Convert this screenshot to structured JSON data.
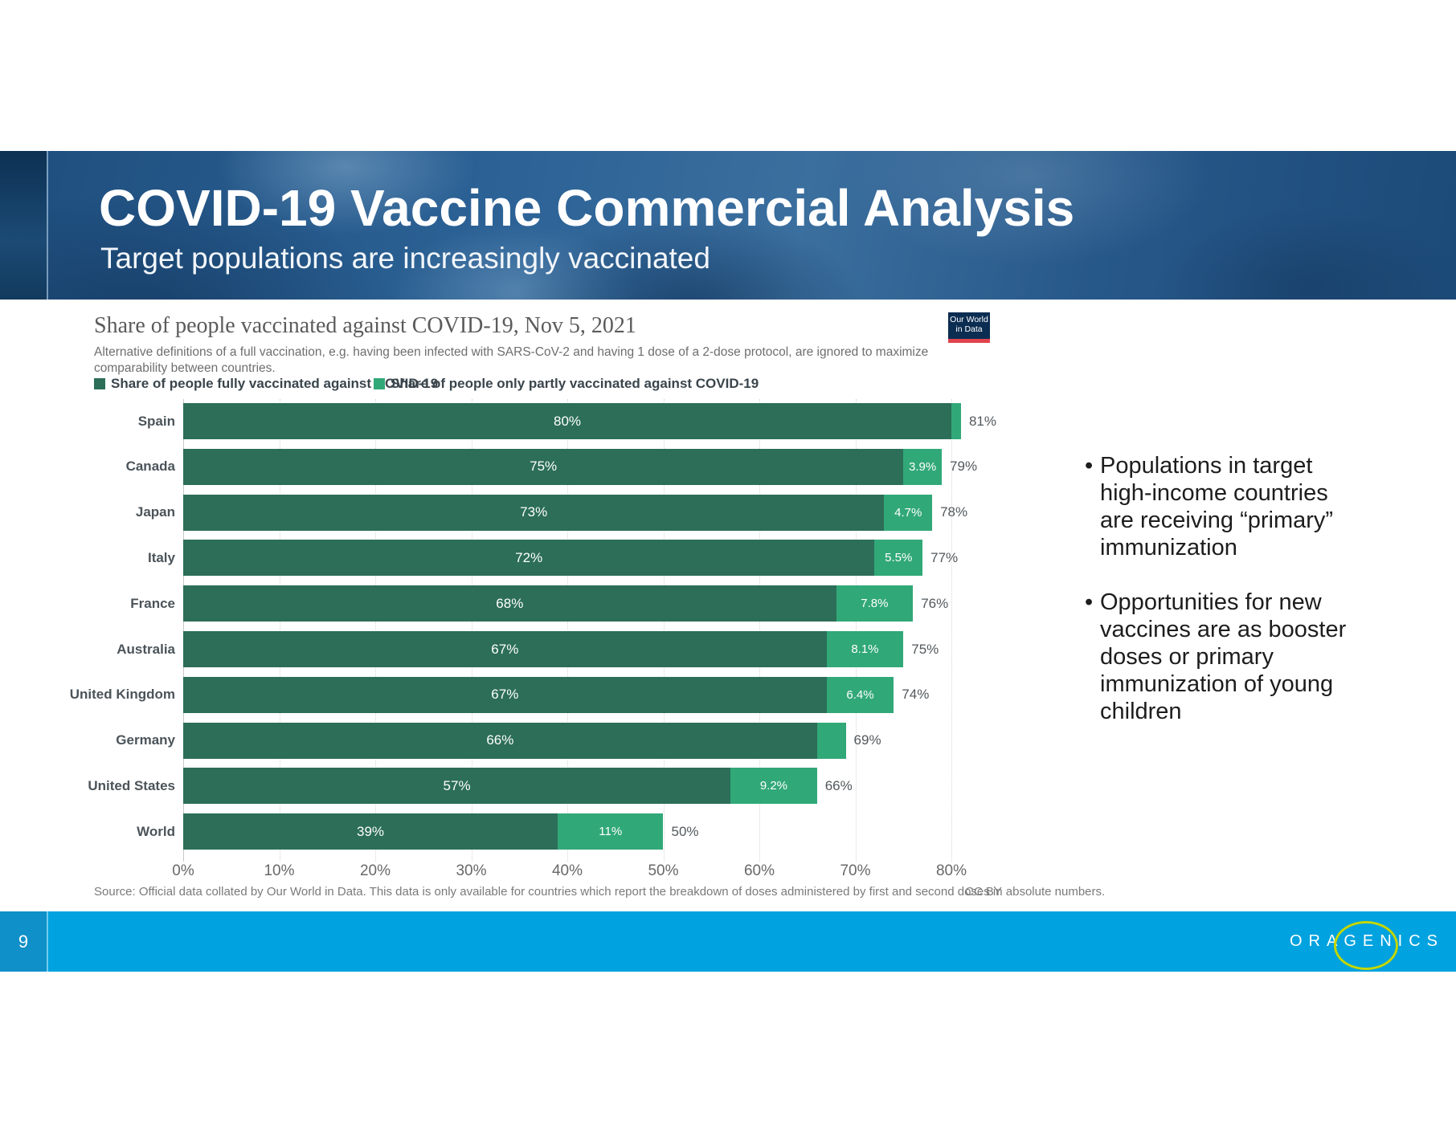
{
  "slide": {
    "title": "COVID-19 Vaccine Commercial Analysis",
    "subtitle": "Target populations are increasingly vaccinated",
    "page_number": "9",
    "logo_text": "ORAGENICS"
  },
  "colors": {
    "full_vaccinated_green": "#2c6e58",
    "partly_vaccinated_teal": "#31a878",
    "footer_blue": "#00a2df",
    "footer_dark_blue": "#1090c8",
    "owid_navy": "#0c2d52",
    "owid_red": "#e0434d",
    "logo_ellipse_yellow_green": "#c3d600"
  },
  "chart": {
    "title": "Share of people vaccinated against COVID-19, Nov 5, 2021",
    "subtitle": "Alternative definitions of a full vaccination, e.g. having been infected with SARS-CoV-2 and having 1 dose of a 2-dose protocol, are ignored to maximize comparability between countries.",
    "owid_logo_line1": "Our World",
    "owid_logo_line2": "in Data",
    "source": "Source: Official data collated by Our World in Data. This data is only available for countries which report the breakdown of doses administered by first and second doses in absolute numbers.",
    "license": "CC BY"
  },
  "chart_data": {
    "type": "bar",
    "orientation": "horizontal",
    "stacked": true,
    "title": "Share of people vaccinated against COVID-19, Nov 5, 2021",
    "categories": [
      "Spain",
      "Canada",
      "Japan",
      "Italy",
      "France",
      "Australia",
      "United Kingdom",
      "Germany",
      "United States",
      "World"
    ],
    "series": [
      {
        "name": "Share of people fully vaccinated against COVID-19",
        "color": "#2c6e58",
        "values": [
          80,
          75,
          73,
          72,
          68,
          67,
          67,
          66,
          57,
          39
        ],
        "labels": [
          "80%",
          "75%",
          "73%",
          "72%",
          "68%",
          "67%",
          "67%",
          "66%",
          "57%",
          "39%"
        ]
      },
      {
        "name": "Share of people only partly vaccinated against COVID-19",
        "color": "#31a878",
        "values": [
          1,
          3.9,
          4.7,
          5.5,
          7.8,
          8.1,
          6.4,
          3,
          9.2,
          11
        ],
        "labels": [
          "",
          "3.9%",
          "4.7%",
          "5.5%",
          "7.8%",
          "8.1%",
          "6.4%",
          "",
          "9.2%",
          "11%"
        ]
      }
    ],
    "totals_value": [
      81,
      79,
      78,
      77,
      76,
      75,
      74,
      69,
      66,
      50
    ],
    "totals_label": [
      "81%",
      "79%",
      "78%",
      "77%",
      "76%",
      "75%",
      "74%",
      "69%",
      "66%",
      "50%"
    ],
    "x_ticks": [
      "0%",
      "10%",
      "20%",
      "30%",
      "40%",
      "50%",
      "60%",
      "70%",
      "80%"
    ],
    "xlim": [
      0,
      80
    ],
    "grid": "dotted-vertical",
    "legend_position": "top-left"
  },
  "bullets": [
    "Populations in target high-income countries are receiving “primary” immunization",
    "Opportunities for new vaccines are as booster doses or primary immunization of young children"
  ]
}
